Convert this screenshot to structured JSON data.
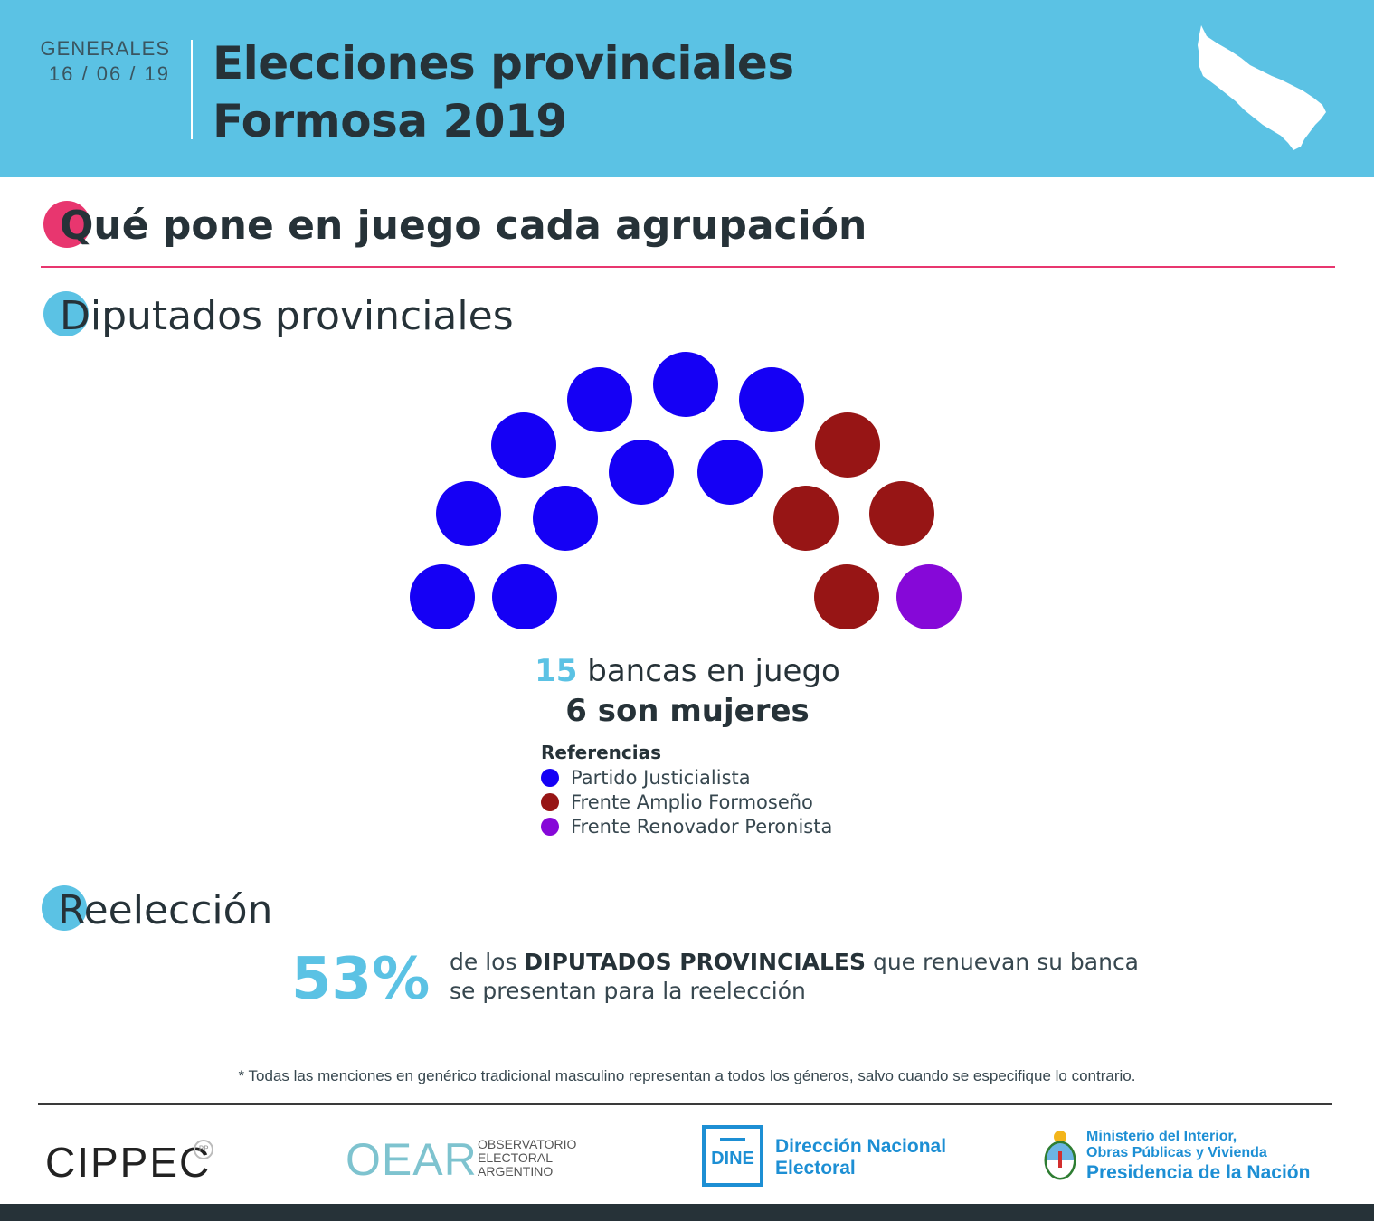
{
  "header": {
    "date_label": "GENERALES",
    "date_value": "16 / 06 / 19",
    "title_line1": "Elecciones provinciales",
    "title_line2": "Formosa 2019",
    "map_icon": "formosa-province-map-icon"
  },
  "section_main": {
    "title": "Qué pone en juego cada agrupación"
  },
  "section_diputados": {
    "title": "Diputados provinciales"
  },
  "seats": {
    "parties": [
      {
        "name": "Partido Justicialista",
        "color": "#1500f5",
        "seats": 10
      },
      {
        "name": "Frente Amplio Formoseño",
        "color": "#971515",
        "seats": 4
      },
      {
        "name": "Frente Renovador Peronista",
        "color": "#8608d8",
        "seats": 1
      }
    ],
    "total_value": "15",
    "total_text": " bancas en juego",
    "women_text": "6 son mujeres"
  },
  "legend": {
    "title": "Referencias",
    "items": [
      {
        "label": "Partido Justicialista",
        "color": "#1500f5"
      },
      {
        "label": "Frente Amplio Formoseño",
        "color": "#971515"
      },
      {
        "label": "Frente Renovador Peronista",
        "color": "#8608d8"
      }
    ]
  },
  "section_reeleccion": {
    "title": "Reelección"
  },
  "reeleccion": {
    "percent": "53%",
    "text_pre": "de los ",
    "text_bold": "DIPUTADOS PROVINCIALES",
    "text_post": " que renuevan su banca",
    "text_line2": "se presentan para la reelección"
  },
  "footnote": "* Todas las menciones en genérico tradicional masculino representan a todos los géneros, salvo cuando se especifique lo contrario.",
  "logos": {
    "cippec": "CIPPEC",
    "cippec_badge": "PP",
    "oear": "OEAR",
    "oear_line1": "OBSERVATORIO",
    "oear_line2": "ELECTORAL",
    "oear_line3": "ARGENTINO",
    "dine": "DINE",
    "dine_line1": "Dirección Nacional",
    "dine_line2": "Electoral",
    "min_line1": "Ministerio del Interior,",
    "min_line2": "Obras Públicas y Vivienda",
    "min_line3": "Presidencia de la Nación"
  }
}
